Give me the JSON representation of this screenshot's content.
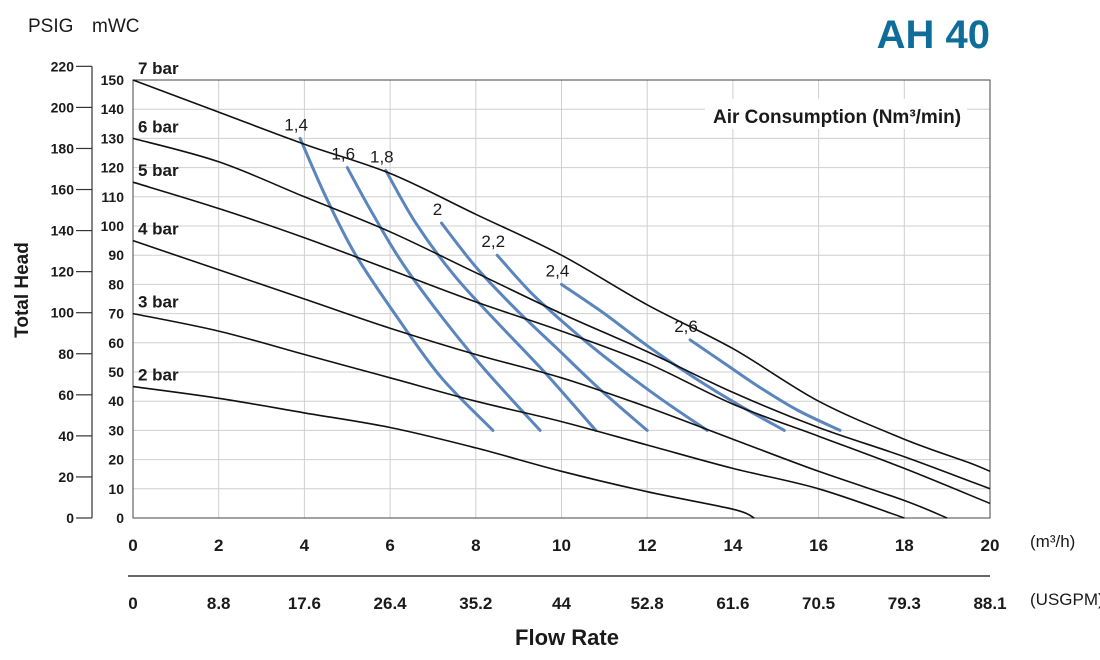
{
  "chart_data": {
    "type": "line",
    "title": "AH 40",
    "xlabel": "Flow Rate",
    "ylabel": "Total Head",
    "x_unit": "(m³/h)",
    "x2_unit": "(USGPM)",
    "y_unit_outer": "PSIG",
    "y_unit_inner": "mWC",
    "xlim": [
      0,
      20
    ],
    "ylim_mwc": [
      0,
      150
    ],
    "x_ticks": [
      "0",
      "2",
      "4",
      "6",
      "8",
      "10",
      "12",
      "14",
      "16",
      "18",
      "20"
    ],
    "x2_ticks": [
      "0",
      "8.8",
      "17.6",
      "26.4",
      "35.2",
      "44",
      "52.8",
      "61.6",
      "70.5",
      "79.3",
      "88.1"
    ],
    "y_ticks_mwc": [
      "0",
      "10",
      "20",
      "30",
      "40",
      "50",
      "60",
      "70",
      "80",
      "90",
      "100",
      "110",
      "120",
      "130",
      "140",
      "150"
    ],
    "y_ticks_psig": [
      "0",
      "20",
      "40",
      "60",
      "80",
      "100",
      "120",
      "140",
      "160",
      "180",
      "200",
      "220"
    ],
    "grid": true,
    "annotation": "Air Consumption (Nm³/min)",
    "series": [
      {
        "name": "7 bar",
        "x": [
          0,
          2,
          4,
          6,
          8,
          10,
          12,
          14,
          16,
          18,
          19.5,
          20
        ],
        "y": [
          150,
          139,
          128,
          118,
          104,
          90,
          73,
          58,
          40,
          27,
          19,
          16
        ]
      },
      {
        "name": "6 bar",
        "x": [
          0,
          2,
          4,
          6,
          8,
          10,
          12,
          14,
          16,
          18,
          20
        ],
        "y": [
          130,
          122,
          110,
          98,
          84,
          70,
          57,
          43,
          31,
          21,
          10
        ]
      },
      {
        "name": "5 bar",
        "x": [
          0,
          2,
          4,
          6,
          8,
          10,
          12,
          14,
          16,
          18,
          20
        ],
        "y": [
          115,
          106,
          96,
          85,
          74,
          64,
          53,
          39,
          28,
          17,
          5
        ]
      },
      {
        "name": "4 bar",
        "x": [
          0,
          2,
          4,
          6,
          8,
          10,
          12,
          14,
          16,
          18,
          19
        ],
        "y": [
          95,
          85,
          75,
          65,
          56,
          48,
          38,
          27,
          16,
          6,
          0
        ]
      },
      {
        "name": "3 bar",
        "x": [
          0,
          2,
          4,
          6,
          8,
          10,
          12,
          14,
          16,
          18
        ],
        "y": [
          70,
          64,
          56,
          48,
          40,
          33,
          25,
          17,
          10,
          0
        ]
      },
      {
        "name": "2 bar",
        "x": [
          0,
          2,
          4,
          6,
          8,
          10,
          12,
          14,
          14.5
        ],
        "y": [
          45,
          41,
          36,
          31,
          24,
          16,
          9,
          3,
          0
        ]
      }
    ],
    "air_consumption": [
      {
        "label": "1,4",
        "x": [
          3.9,
          4.5,
          5.2,
          6.2,
          7.2,
          8.4
        ],
        "y": [
          130,
          110,
          90,
          68,
          48,
          30
        ]
      },
      {
        "label": "1,6",
        "x": [
          5.0,
          5.6,
          6.3,
          7.2,
          8.2,
          9.5
        ],
        "y": [
          120,
          104,
          87,
          69,
          51,
          30
        ]
      },
      {
        "label": "1,8",
        "x": [
          5.9,
          6.6,
          7.5,
          8.5,
          9.6,
          10.8
        ],
        "y": [
          119,
          101,
          83,
          67,
          50,
          30
        ]
      },
      {
        "label": "2",
        "x": [
          7.2,
          8.0,
          8.9,
          9.9,
          10.9,
          12.0
        ],
        "y": [
          101,
          86,
          72,
          58,
          44,
          30
        ]
      },
      {
        "label": "2,2",
        "x": [
          8.5,
          9.3,
          10.2,
          11.2,
          12.3,
          13.4
        ],
        "y": [
          90,
          77,
          65,
          53,
          41,
          30
        ]
      },
      {
        "label": "2,4",
        "x": [
          10.0,
          11.0,
          12.0,
          13.0,
          14.1,
          15.2
        ],
        "y": [
          80,
          70,
          59,
          49,
          39,
          30
        ]
      },
      {
        "label": "2,6",
        "x": [
          13.0,
          13.8,
          14.6,
          15.5,
          16.5
        ],
        "y": [
          61,
          53,
          45,
          37,
          30
        ]
      }
    ]
  }
}
